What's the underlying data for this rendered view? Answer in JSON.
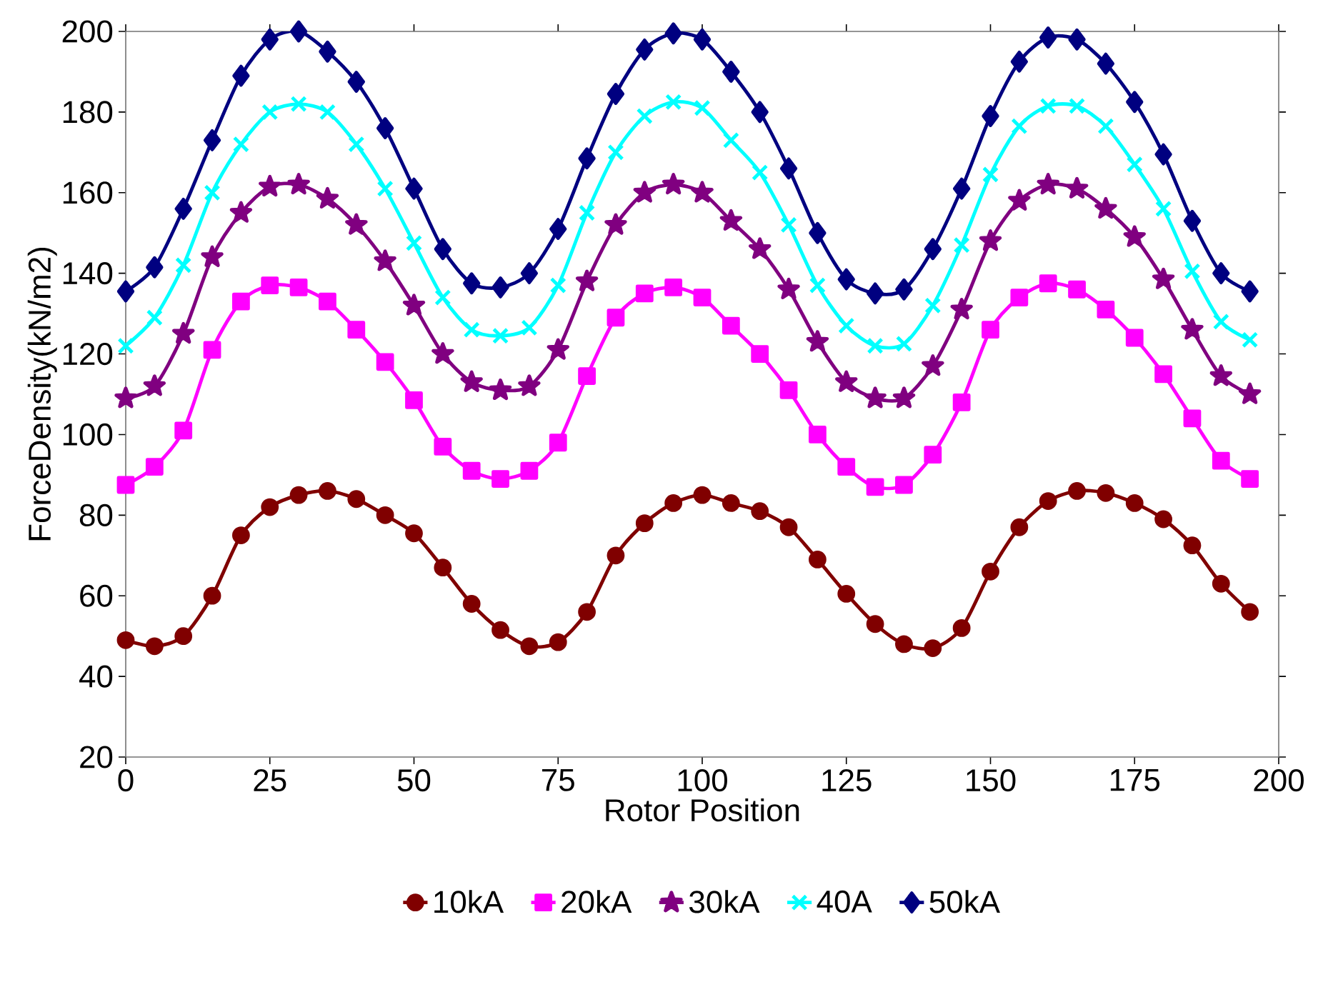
{
  "chart_data": {
    "type": "line",
    "xlabel": "Rotor Position",
    "ylabel": "ForceDensity(kN/m2)",
    "x": [
      0,
      5,
      10,
      15,
      20,
      25,
      30,
      35,
      40,
      45,
      50,
      55,
      60,
      65,
      70,
      75,
      80,
      85,
      90,
      95,
      100,
      105,
      110,
      115,
      120,
      125,
      130,
      135,
      140,
      145,
      150,
      155,
      160,
      165,
      170,
      175,
      180,
      185,
      190,
      195
    ],
    "xlim": [
      0,
      200
    ],
    "xticks": [
      0,
      25,
      50,
      75,
      100,
      125,
      150,
      175,
      200
    ],
    "ylim": [
      20,
      200
    ],
    "yticks": [
      20,
      40,
      60,
      80,
      100,
      120,
      140,
      160,
      180,
      200
    ],
    "grid": false,
    "legend": "bottom",
    "series": [
      {
        "name": "10kA",
        "color": "#800000",
        "marker": "circle",
        "values": [
          49,
          47.5,
          50,
          60,
          75,
          82,
          85,
          86,
          84,
          80,
          75.5,
          67,
          58,
          51.5,
          47.5,
          48.5,
          56,
          70,
          78,
          83,
          85,
          83,
          81,
          77,
          69,
          60.5,
          53,
          48,
          47,
          52,
          66,
          77,
          83.5,
          86,
          85.5,
          83,
          79,
          72.5,
          63,
          56
        ]
      },
      {
        "name": "20kA",
        "color": "#ff00ff",
        "marker": "square",
        "values": [
          87.5,
          92,
          101,
          121,
          133,
          137,
          136.5,
          133,
          126,
          118,
          108.5,
          97,
          91,
          89,
          91,
          98,
          114.5,
          129,
          135,
          136.5,
          134,
          127,
          120,
          111,
          100,
          92,
          87,
          87.5,
          95,
          108,
          126,
          134,
          137.5,
          136,
          131,
          124,
          115,
          104,
          93.5,
          89
        ]
      },
      {
        "name": "30kA",
        "color": "#800080",
        "marker": "star",
        "values": [
          109,
          112,
          125,
          144,
          155,
          161.5,
          162,
          158.5,
          152,
          143,
          132,
          120,
          113,
          111,
          112,
          121,
          138,
          152,
          160,
          162,
          160,
          153,
          146,
          136,
          123,
          113,
          109,
          109,
          117,
          131,
          148,
          158,
          162,
          161,
          156,
          149,
          138.5,
          126,
          114.5,
          110
        ]
      },
      {
        "name": "40A",
        "color": "#00ffff",
        "marker": "cross",
        "values": [
          122,
          129,
          142,
          160,
          172,
          180,
          182,
          180,
          172,
          161,
          147.5,
          134,
          126,
          124.5,
          126.5,
          137,
          155,
          170,
          179,
          182.5,
          181,
          173,
          165,
          152,
          137,
          127,
          122,
          122.5,
          132,
          147,
          164.5,
          176.5,
          181.5,
          181.5,
          176.5,
          167,
          156,
          140.5,
          128,
          123.5
        ]
      },
      {
        "name": "50kA",
        "color": "#000080",
        "marker": "diamond",
        "values": [
          135.5,
          141.5,
          156,
          173,
          189,
          198,
          200,
          195,
          187.5,
          176,
          161,
          146,
          137.5,
          136.5,
          140,
          151,
          168.5,
          184.5,
          195.5,
          199.5,
          198,
          190,
          180,
          166,
          150,
          138.5,
          135,
          136,
          146,
          161,
          179,
          192.5,
          198.5,
          198,
          192,
          182.5,
          169.5,
          153,
          140,
          135.5
        ]
      }
    ]
  }
}
